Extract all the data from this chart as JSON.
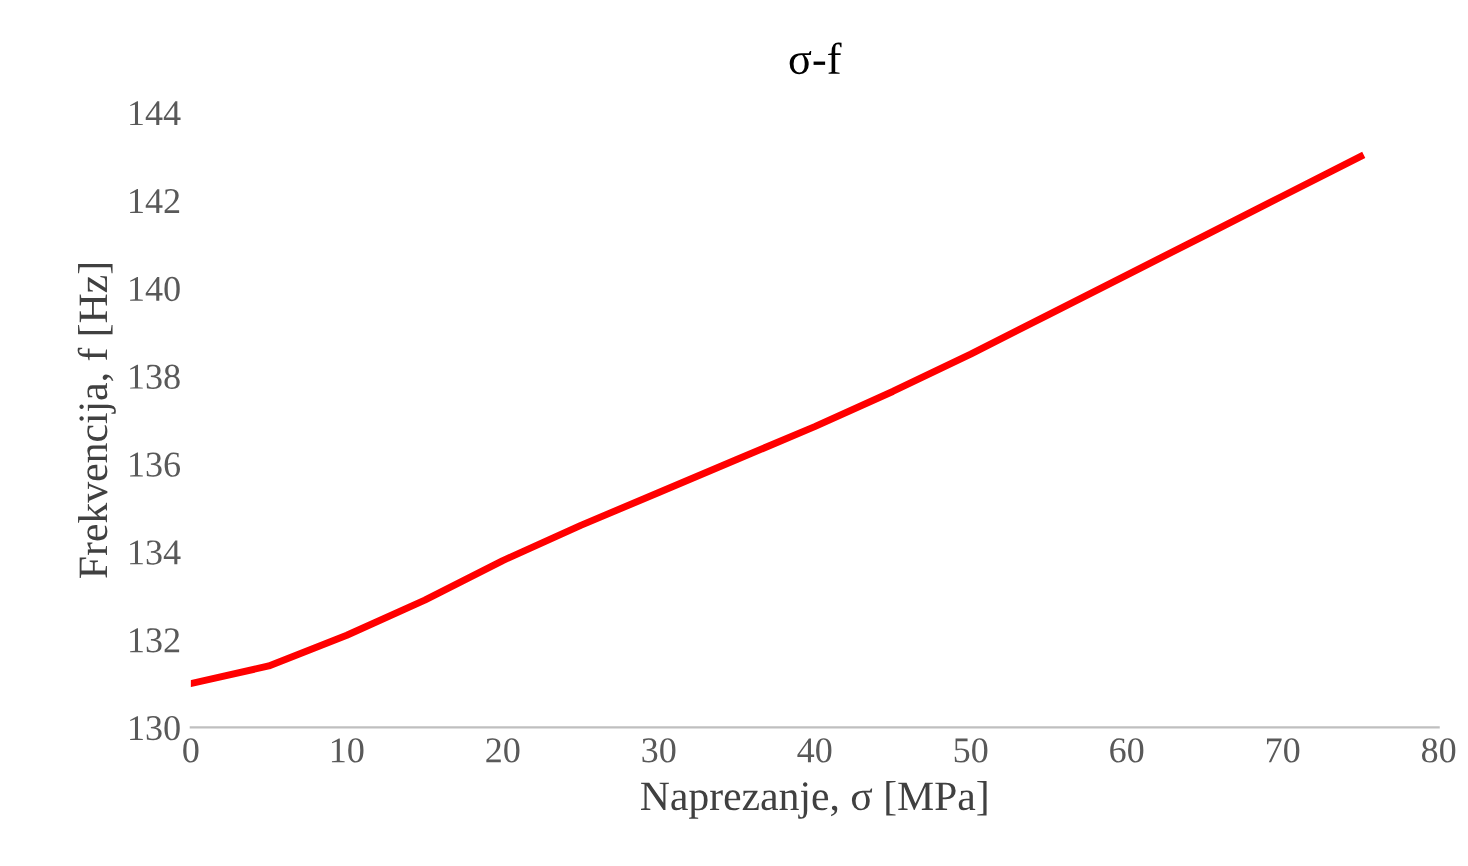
{
  "chart_data": {
    "type": "line",
    "title": "σ-f",
    "xlabel": "Naprezanje, σ [MPa]",
    "ylabel": "Frekvencija, f [Hz]",
    "x": [
      0,
      5,
      10,
      15,
      20,
      25,
      30,
      35,
      40,
      45,
      50,
      55,
      60,
      65,
      70,
      75
    ],
    "series": [
      {
        "color": "#ff0000",
        "values": [
          131.0,
          131.4,
          132.1,
          132.9,
          133.8,
          134.6,
          135.35,
          136.1,
          136.85,
          137.65,
          138.5,
          139.4,
          140.3,
          141.2,
          142.1,
          143.0
        ]
      }
    ],
    "xlim": [
      0,
      80
    ],
    "xticks": [
      0,
      10,
      20,
      30,
      40,
      50,
      60,
      70,
      80
    ],
    "ylim": [
      130,
      144
    ],
    "yticks": [
      130,
      132,
      134,
      136,
      138,
      140,
      142,
      144
    ],
    "grid": false,
    "legend": false,
    "marker": "none",
    "line_style": "solid"
  }
}
